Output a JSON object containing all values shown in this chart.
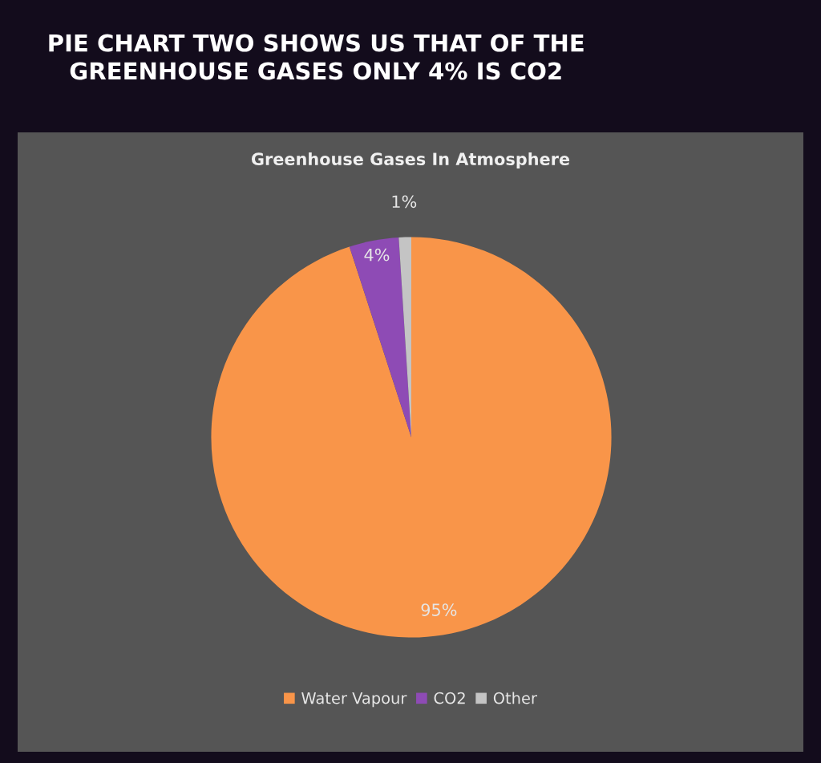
{
  "chart_data": {
    "type": "pie",
    "title": "PIE CHART TWO SHOWS US THAT OF THE\nGREENHOUSE GASES ONLY 4% IS CO2",
    "subtitle": "Greenhouse Gases In Atmosphere",
    "categories": [
      "Water Vapour",
      "CO2",
      "Other"
    ],
    "values": [
      95,
      4,
      1
    ],
    "colors": [
      "#f99549",
      "#8e4bb5",
      "#c4c4c4"
    ],
    "value_labels": [
      "95%",
      "4%",
      "1%"
    ],
    "legend": "bottom"
  }
}
